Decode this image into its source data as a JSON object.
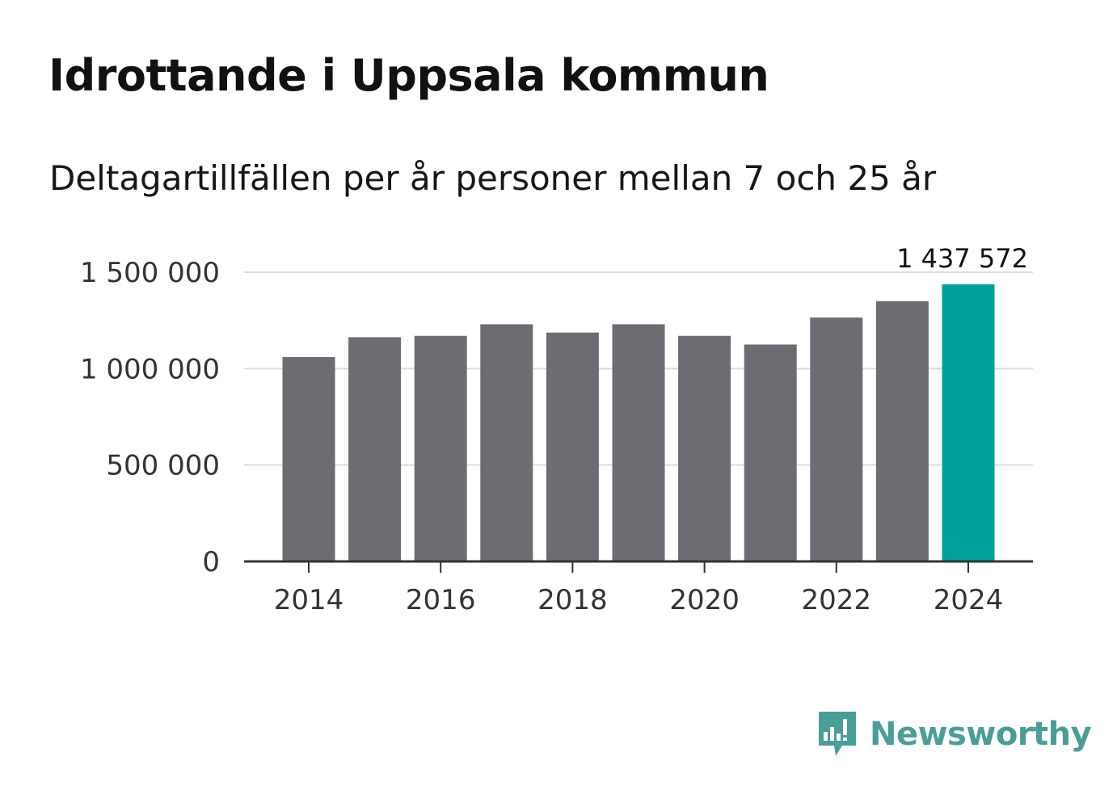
{
  "header": {
    "title": "Idrottande i Uppsala kommun",
    "subtitle": "Deltagartillfällen per år personer mellan 7 och 25 år"
  },
  "brand": {
    "name": "Newsworthy",
    "icon": "newsworthy-chart-bubble-icon",
    "color": "#4a9e98"
  },
  "colors": {
    "bar": "#6d6c72",
    "highlight": "#00a19a",
    "grid": "#dcdcdc",
    "axis": "#333333"
  },
  "chart_data": {
    "type": "bar",
    "title": "Idrottande i Uppsala kommun",
    "subtitle": "Deltagartillfällen per år personer mellan 7 och 25 år",
    "xlabel": "",
    "ylabel": "",
    "categories": [
      "2014",
      "2015",
      "2016",
      "2017",
      "2018",
      "2019",
      "2020",
      "2021",
      "2022",
      "2023",
      "2024"
    ],
    "values": [
      1060000,
      1163000,
      1170000,
      1230000,
      1187000,
      1230000,
      1170000,
      1125000,
      1265000,
      1350000,
      1437572
    ],
    "highlight_index": 10,
    "highlight_label": "1 437 572",
    "ylim": [
      0,
      1500000
    ],
    "yticks": [
      0,
      500000,
      1000000,
      1500000
    ],
    "ytick_labels": [
      "0",
      "500 000",
      "1 000 000",
      "1 500 000"
    ],
    "xtick_labels": [
      "2014",
      "2016",
      "2018",
      "2020",
      "2022",
      "2024"
    ],
    "grid": true,
    "legend": "none"
  }
}
